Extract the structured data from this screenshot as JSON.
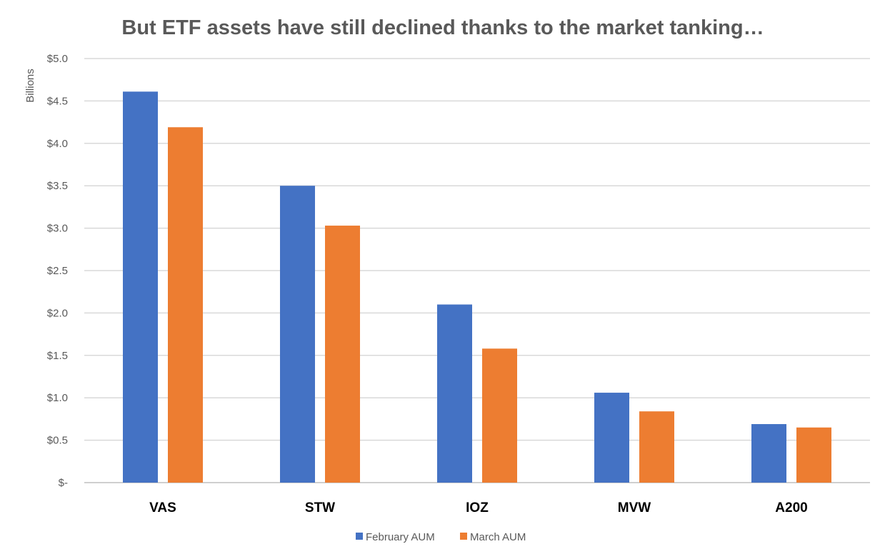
{
  "chart_data": {
    "type": "bar",
    "title": "But ETF assets have still declined thanks to the market tanking…",
    "xlabel": "",
    "ylabel": "Billions",
    "categories": [
      "VAS",
      "STW",
      "IOZ",
      "MVW",
      "A200"
    ],
    "series": [
      {
        "name": "February AUM",
        "color": "#4472C4",
        "values": [
          4.61,
          3.5,
          2.1,
          1.06,
          0.69
        ]
      },
      {
        "name": "March AUM",
        "color": "#ED7D31",
        "values": [
          4.19,
          3.03,
          1.58,
          0.84,
          0.65
        ]
      }
    ],
    "ylim": [
      0,
      5
    ],
    "yticks": [
      0,
      0.5,
      1.0,
      1.5,
      2.0,
      2.5,
      3.0,
      3.5,
      4.0,
      4.5,
      5.0
    ],
    "ytick_labels": [
      "$-",
      "$0.5",
      "$1.0",
      "$1.5",
      "$2.0",
      "$2.5",
      "$3.0",
      "$3.5",
      "$4.0",
      "$4.5",
      "$5.0"
    ],
    "grid": true,
    "legend_position": "bottom"
  }
}
